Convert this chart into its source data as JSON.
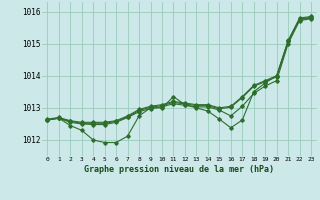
{
  "title": "Graphe pression niveau de la mer (hPa)",
  "bg_color": "#cce8e8",
  "grid_color": "#99ccbb",
  "line_color": "#2d6e2d",
  "xlim": [
    -0.5,
    23.5
  ],
  "ylim": [
    1011.5,
    1016.3
  ],
  "xticks": [
    0,
    1,
    2,
    3,
    4,
    5,
    6,
    7,
    8,
    9,
    10,
    11,
    12,
    13,
    14,
    15,
    16,
    17,
    18,
    19,
    20,
    21,
    22,
    23
  ],
  "yticks": [
    1012,
    1013,
    1014,
    1015,
    1016
  ],
  "series": [
    {
      "x": [
        0,
        1,
        2,
        3,
        4,
        5,
        6,
        7,
        8,
        9,
        10,
        11,
        12,
        13,
        14,
        15,
        16,
        17,
        18,
        19,
        20,
        21,
        22,
        23
      ],
      "y": [
        1012.65,
        1012.7,
        1012.6,
        1012.55,
        1012.55,
        1012.55,
        1012.6,
        1012.75,
        1012.95,
        1013.05,
        1013.1,
        1013.2,
        1013.15,
        1013.1,
        1013.1,
        1013.0,
        1013.05,
        1013.35,
        1013.7,
        1013.85,
        1014.0,
        1015.1,
        1015.8,
        1015.85
      ]
    },
    {
      "x": [
        0,
        1,
        2,
        3,
        4,
        5,
        6,
        7,
        8,
        9,
        10,
        11,
        12,
        13,
        14,
        15,
        16,
        17,
        18,
        19,
        20,
        21,
        22,
        23
      ],
      "y": [
        1012.62,
        1012.68,
        1012.58,
        1012.52,
        1012.52,
        1012.52,
        1012.58,
        1012.72,
        1012.92,
        1013.02,
        1013.07,
        1013.17,
        1013.12,
        1013.07,
        1013.07,
        1012.97,
        1013.02,
        1013.32,
        1013.67,
        1013.82,
        1013.97,
        1015.07,
        1015.77,
        1015.82
      ]
    },
    {
      "x": [
        0,
        1,
        2,
        3,
        4,
        5,
        6,
        7,
        8,
        9,
        10,
        11,
        12,
        13,
        14,
        15,
        16,
        17,
        18,
        19,
        20,
        21,
        22,
        23
      ],
      "y": [
        1012.62,
        1012.68,
        1012.55,
        1012.5,
        1012.48,
        1012.48,
        1012.55,
        1012.7,
        1012.88,
        1012.98,
        1013.03,
        1013.13,
        1013.08,
        1013.03,
        1013.03,
        1012.93,
        1012.75,
        1013.05,
        1013.45,
        1013.68,
        1013.85,
        1015.0,
        1015.72,
        1015.78
      ]
    },
    {
      "x": [
        0,
        1,
        2,
        3,
        4,
        5,
        6,
        7,
        8,
        9,
        10,
        11,
        12,
        13,
        14,
        15,
        16,
        17,
        18,
        19,
        20,
        21,
        22,
        23
      ],
      "y": [
        1012.62,
        1012.68,
        1012.45,
        1012.3,
        1012.0,
        1011.92,
        1011.92,
        1012.12,
        1012.75,
        1013.0,
        1013.0,
        1013.35,
        1013.1,
        1013.0,
        1012.9,
        1012.65,
        1012.38,
        1012.62,
        1013.5,
        1013.78,
        1014.0,
        1015.08,
        1015.75,
        1015.8
      ]
    }
  ]
}
